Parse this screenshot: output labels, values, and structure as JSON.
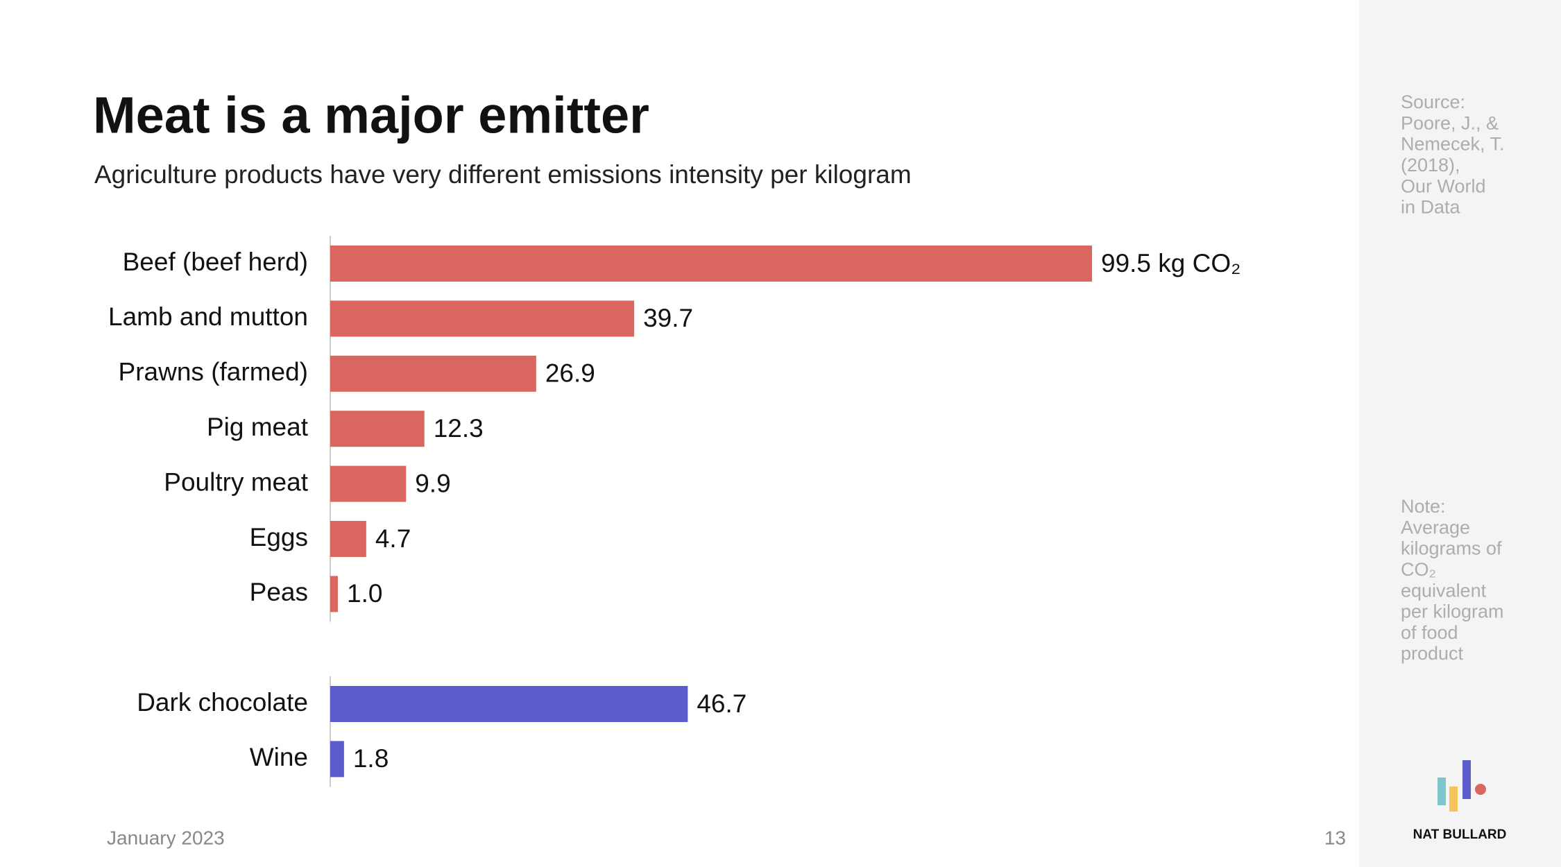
{
  "header": {
    "title": "Meat is a major emitter",
    "subtitle": "Agriculture products have very different emissions intensity per kilogram"
  },
  "chart_data": {
    "type": "bar",
    "orientation": "horizontal",
    "groups": [
      {
        "color": "#d9675f",
        "categories": [
          "Beef (beef herd)",
          "Lamb and mutton",
          "Prawns (farmed)",
          "Pig meat",
          "Poultry meat",
          "Eggs",
          "Peas"
        ],
        "values": [
          99.5,
          39.7,
          26.9,
          12.3,
          9.9,
          4.7,
          1.0
        ],
        "value_labels": [
          "99.5 kg CO₂",
          "39.7",
          "26.9",
          "12.3",
          "9.9",
          "4.7",
          "1.0"
        ]
      },
      {
        "color": "#5b5bcc",
        "categories": [
          "Dark chocolate",
          "Wine"
        ],
        "values": [
          46.7,
          1.8
        ],
        "value_labels": [
          "46.7",
          "1.8"
        ]
      }
    ]
  },
  "sidebar": {
    "source": [
      "Source:",
      "Poore, J., &",
      "Nemecek, T.",
      "(2018),",
      "Our World",
      "in Data"
    ],
    "note": [
      "Note:",
      "Average",
      "kilograms of",
      "CO₂",
      "equivalent",
      "per kilogram",
      "of food",
      "product"
    ],
    "brand": "NAT BULLARD"
  },
  "footer": {
    "date": "January 2023",
    "page": "13"
  }
}
